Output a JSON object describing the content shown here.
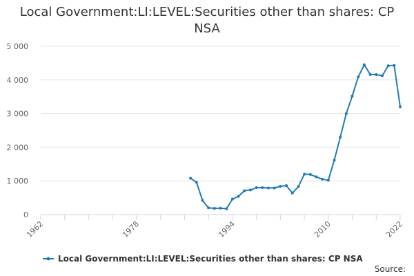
{
  "colors": {
    "series": "#1f7bb6",
    "grid": "#e6e6e6",
    "axis": "#ccd6eb"
  },
  "chart_data": {
    "type": "line",
    "title_line1": "Local Government:LI:LEVEL:Securities other than shares: CP",
    "title_line2": "NSA",
    "xlim": [
      1962,
      2022
    ],
    "ylim": [
      0,
      5000
    ],
    "x_ticks": [
      "1962",
      "1978",
      "1994",
      "2010",
      "2022"
    ],
    "y_ticks": [
      "0",
      "1 000",
      "2 000",
      "3 000",
      "4 000",
      "5 000"
    ],
    "grid": true,
    "legend_position": "bottom-center",
    "series": [
      {
        "name": "Local Government:LI:LEVEL:Securities other than shares: CP NSA",
        "points": [
          [
            1987,
            1080
          ],
          [
            1988,
            960
          ],
          [
            1989,
            420
          ],
          [
            1990,
            200
          ],
          [
            1991,
            185
          ],
          [
            1992,
            190
          ],
          [
            1993,
            175
          ],
          [
            1994,
            460
          ],
          [
            1995,
            540
          ],
          [
            1996,
            710
          ],
          [
            1997,
            730
          ],
          [
            1998,
            800
          ],
          [
            1999,
            800
          ],
          [
            2000,
            790
          ],
          [
            2001,
            790
          ],
          [
            2002,
            840
          ],
          [
            2003,
            860
          ],
          [
            2004,
            640
          ],
          [
            2005,
            830
          ],
          [
            2006,
            1200
          ],
          [
            2007,
            1190
          ],
          [
            2008,
            1120
          ],
          [
            2009,
            1050
          ],
          [
            2010,
            1020
          ],
          [
            2011,
            1620
          ],
          [
            2012,
            2300
          ],
          [
            2013,
            3000
          ],
          [
            2014,
            3520
          ],
          [
            2015,
            4090
          ],
          [
            2016,
            4450
          ],
          [
            2017,
            4160
          ],
          [
            2018,
            4160
          ],
          [
            2019,
            4120
          ],
          [
            2020,
            4420
          ],
          [
            2021,
            4430
          ],
          [
            2022,
            3200
          ]
        ]
      }
    ],
    "source_label": "Source:"
  }
}
